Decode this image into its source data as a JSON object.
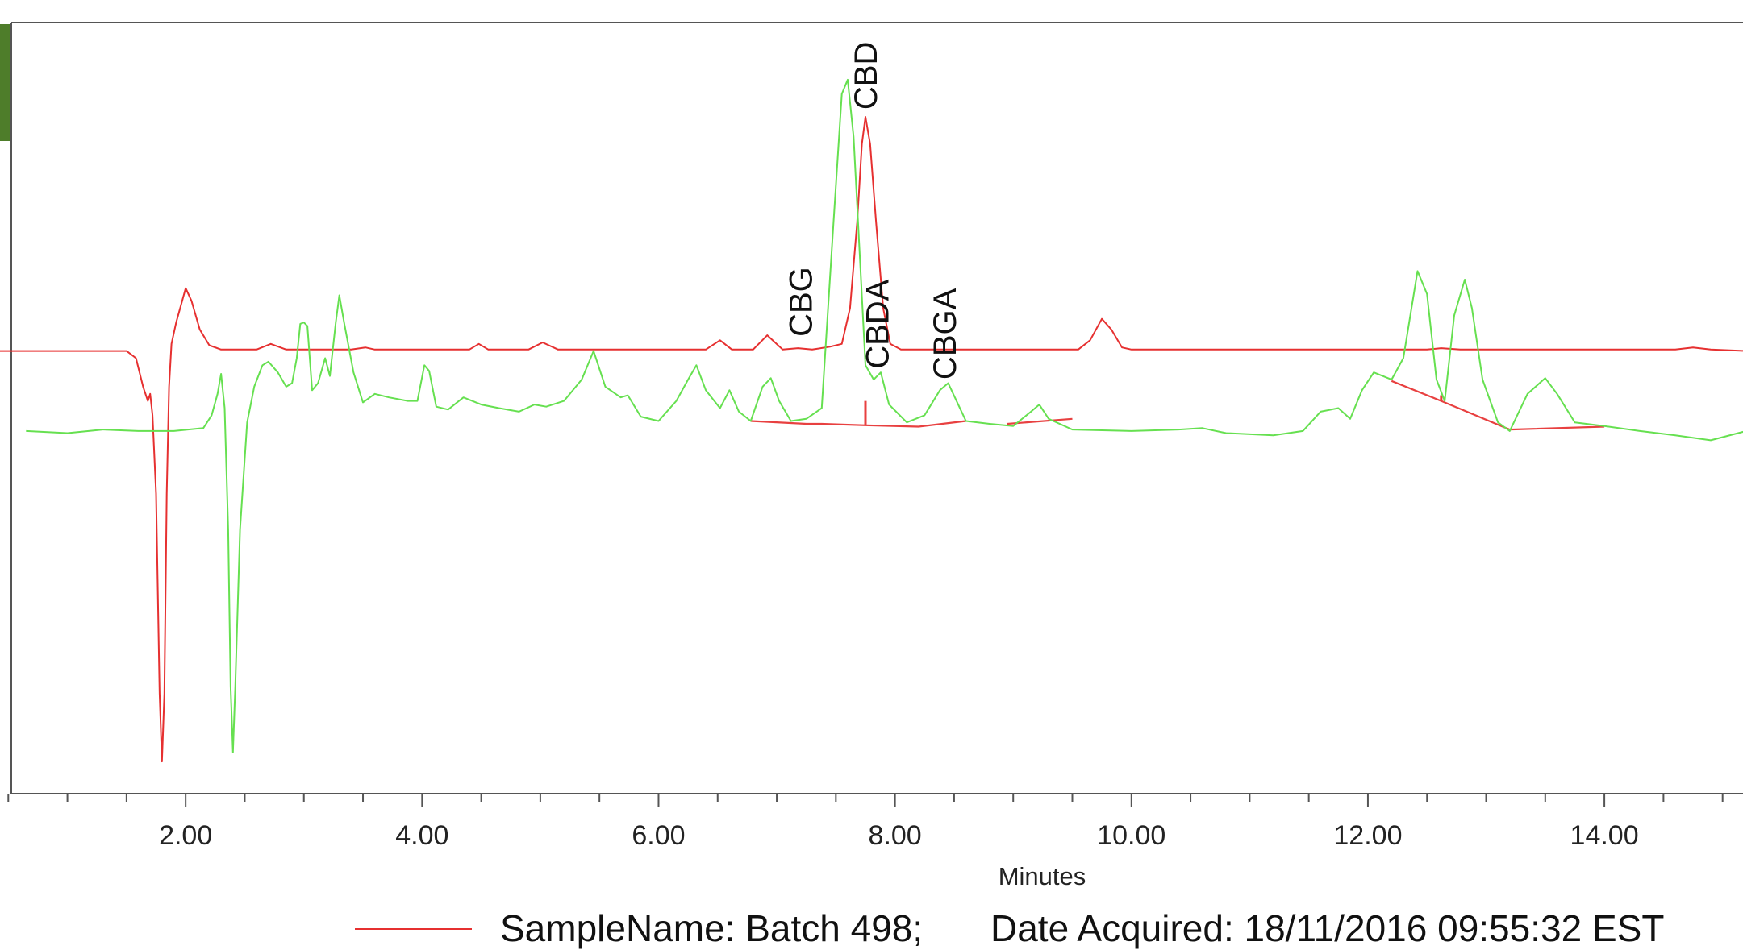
{
  "colors": {
    "red_trace": "#e63030",
    "green_trace": "#66e050",
    "baseline": "#e84040",
    "axis": "#555555",
    "side_accent": "#4e7d2a"
  },
  "chart_data": {
    "type": "line",
    "xlabel": "Minutes",
    "xlim": [
      0,
      15.2
    ],
    "ylim": [
      -620,
      460
    ],
    "grid": false,
    "x_ticks": [
      "2.00",
      "4.00",
      "6.00",
      "8.00",
      "10.00",
      "12.00",
      "14.00"
    ],
    "x_tick_values": [
      2,
      4,
      6,
      8,
      10,
      12,
      14
    ],
    "legend": {
      "entries": [
        {
          "sample": "SampleName: Batch 498;",
          "date": "Date Acquired: 18/11/2016 09:55:32 EST"
        }
      ]
    },
    "peak_labels": [
      {
        "text": "CBG",
        "x": 7.2,
        "y": 20
      },
      {
        "text": "CBD",
        "x": 7.75,
        "y": 338
      },
      {
        "text": "CBDA",
        "x": 7.85,
        "y": -25
      },
      {
        "text": "CBGA",
        "x": 8.42,
        "y": -40
      }
    ],
    "series": [
      {
        "color": "#e63030",
        "points": [
          [
            0,
            0
          ],
          [
            1.5,
            0
          ],
          [
            1.58,
            -10
          ],
          [
            1.64,
            -50
          ],
          [
            1.68,
            -70
          ],
          [
            1.7,
            -60
          ],
          [
            1.72,
            -90
          ],
          [
            1.75,
            -200
          ],
          [
            1.78,
            -480
          ],
          [
            1.8,
            -575
          ],
          [
            1.82,
            -480
          ],
          [
            1.84,
            -200
          ],
          [
            1.86,
            -50
          ],
          [
            1.88,
            10
          ],
          [
            1.92,
            40
          ],
          [
            1.97,
            70
          ],
          [
            2.0,
            88
          ],
          [
            2.05,
            70
          ],
          [
            2.12,
            30
          ],
          [
            2.2,
            8
          ],
          [
            2.3,
            2
          ],
          [
            2.6,
            2
          ],
          [
            2.72,
            10
          ],
          [
            2.85,
            2
          ],
          [
            3.4,
            2
          ],
          [
            3.52,
            5
          ],
          [
            3.6,
            2
          ],
          [
            4.4,
            2
          ],
          [
            4.48,
            10
          ],
          [
            4.56,
            2
          ],
          [
            4.9,
            2
          ],
          [
            5.02,
            12
          ],
          [
            5.15,
            2
          ],
          [
            6.4,
            2
          ],
          [
            6.52,
            15
          ],
          [
            6.62,
            2
          ],
          [
            6.8,
            2
          ],
          [
            6.92,
            22
          ],
          [
            7.05,
            2
          ],
          [
            7.18,
            4
          ],
          [
            7.3,
            2
          ],
          [
            7.45,
            6
          ],
          [
            7.55,
            10
          ],
          [
            7.62,
            60
          ],
          [
            7.68,
            180
          ],
          [
            7.72,
            290
          ],
          [
            7.75,
            328
          ],
          [
            7.79,
            290
          ],
          [
            7.84,
            180
          ],
          [
            7.9,
            60
          ],
          [
            7.96,
            10
          ],
          [
            8.05,
            2
          ],
          [
            9.55,
            2
          ],
          [
            9.65,
            15
          ],
          [
            9.75,
            45
          ],
          [
            9.83,
            30
          ],
          [
            9.92,
            5
          ],
          [
            10.0,
            2
          ],
          [
            12.5,
            2
          ],
          [
            12.62,
            4
          ],
          [
            12.78,
            2
          ],
          [
            14.6,
            2
          ],
          [
            14.75,
            5
          ],
          [
            14.9,
            2
          ],
          [
            15.2,
            0
          ]
        ]
      },
      {
        "color": "#66e050",
        "points": [
          [
            0.65,
            -112
          ],
          [
            1.0,
            -115
          ],
          [
            1.3,
            -110
          ],
          [
            1.6,
            -112
          ],
          [
            1.9,
            -112
          ],
          [
            2.15,
            -108
          ],
          [
            2.22,
            -90
          ],
          [
            2.27,
            -60
          ],
          [
            2.3,
            -32
          ],
          [
            2.33,
            -80
          ],
          [
            2.36,
            -250
          ],
          [
            2.38,
            -470
          ],
          [
            2.4,
            -562
          ],
          [
            2.42,
            -470
          ],
          [
            2.46,
            -250
          ],
          [
            2.52,
            -100
          ],
          [
            2.58,
            -50
          ],
          [
            2.65,
            -20
          ],
          [
            2.7,
            -15
          ],
          [
            2.78,
            -30
          ],
          [
            2.85,
            -50
          ],
          [
            2.9,
            -45
          ],
          [
            2.94,
            -10
          ],
          [
            2.97,
            38
          ],
          [
            3.0,
            40
          ],
          [
            3.03,
            35
          ],
          [
            3.07,
            -55
          ],
          [
            3.12,
            -45
          ],
          [
            3.18,
            -10
          ],
          [
            3.22,
            -35
          ],
          [
            3.27,
            40
          ],
          [
            3.3,
            78
          ],
          [
            3.34,
            40
          ],
          [
            3.42,
            -30
          ],
          [
            3.5,
            -72
          ],
          [
            3.6,
            -60
          ],
          [
            3.72,
            -65
          ],
          [
            3.88,
            -70
          ],
          [
            3.96,
            -70
          ],
          [
            4.02,
            -20
          ],
          [
            4.06,
            -28
          ],
          [
            4.12,
            -78
          ],
          [
            4.22,
            -82
          ],
          [
            4.35,
            -65
          ],
          [
            4.5,
            -75
          ],
          [
            4.65,
            -80
          ],
          [
            4.82,
            -85
          ],
          [
            4.95,
            -75
          ],
          [
            5.05,
            -78
          ],
          [
            5.2,
            -70
          ],
          [
            5.35,
            -40
          ],
          [
            5.45,
            0
          ],
          [
            5.55,
            -50
          ],
          [
            5.68,
            -65
          ],
          [
            5.74,
            -62
          ],
          [
            5.85,
            -92
          ],
          [
            6.0,
            -98
          ],
          [
            6.15,
            -70
          ],
          [
            6.25,
            -40
          ],
          [
            6.32,
            -20
          ],
          [
            6.4,
            -55
          ],
          [
            6.52,
            -80
          ],
          [
            6.6,
            -55
          ],
          [
            6.68,
            -85
          ],
          [
            6.78,
            -98
          ],
          [
            6.88,
            -50
          ],
          [
            6.95,
            -38
          ],
          [
            7.02,
            -70
          ],
          [
            7.12,
            -98
          ],
          [
            7.25,
            -95
          ],
          [
            7.38,
            -80
          ],
          [
            7.48,
            180
          ],
          [
            7.55,
            360
          ],
          [
            7.6,
            380
          ],
          [
            7.65,
            300
          ],
          [
            7.7,
            140
          ],
          [
            7.75,
            -20
          ],
          [
            7.82,
            -40
          ],
          [
            7.88,
            -30
          ],
          [
            7.95,
            -75
          ],
          [
            8.1,
            -100
          ],
          [
            8.25,
            -90
          ],
          [
            8.38,
            -55
          ],
          [
            8.45,
            -45
          ],
          [
            8.52,
            -70
          ],
          [
            8.6,
            -98
          ],
          [
            8.8,
            -102
          ],
          [
            9.0,
            -105
          ],
          [
            9.15,
            -85
          ],
          [
            9.22,
            -75
          ],
          [
            9.3,
            -95
          ],
          [
            9.5,
            -110
          ],
          [
            10.0,
            -112
          ],
          [
            10.4,
            -110
          ],
          [
            10.6,
            -108
          ],
          [
            10.8,
            -115
          ],
          [
            11.2,
            -118
          ],
          [
            11.45,
            -112
          ],
          [
            11.6,
            -85
          ],
          [
            11.75,
            -80
          ],
          [
            11.85,
            -95
          ],
          [
            11.95,
            -55
          ],
          [
            12.05,
            -30
          ],
          [
            12.2,
            -40
          ],
          [
            12.3,
            -10
          ],
          [
            12.42,
            112
          ],
          [
            12.5,
            80
          ],
          [
            12.58,
            -40
          ],
          [
            12.65,
            -70
          ],
          [
            12.73,
            50
          ],
          [
            12.82,
            100
          ],
          [
            12.88,
            60
          ],
          [
            12.97,
            -40
          ],
          [
            13.1,
            -100
          ],
          [
            13.2,
            -112
          ],
          [
            13.35,
            -60
          ],
          [
            13.5,
            -38
          ],
          [
            13.6,
            -60
          ],
          [
            13.75,
            -100
          ],
          [
            14.0,
            -105
          ],
          [
            14.3,
            -112
          ],
          [
            14.6,
            -118
          ],
          [
            14.9,
            -125
          ],
          [
            15.2,
            -112
          ]
        ]
      }
    ],
    "baselines": [
      {
        "segments": [
          [
            6.78,
            -98
          ],
          [
            7.25,
            -102
          ],
          [
            7.38,
            -102
          ],
          [
            7.75,
            -104
          ],
          [
            8.2,
            -106
          ],
          [
            8.6,
            -98
          ]
        ],
        "drop": [
          7.75,
          -104,
          -70
        ]
      },
      {
        "segments": [
          [
            8.95,
            -102
          ],
          [
            9.5,
            -95
          ]
        ]
      },
      {
        "segments": [
          [
            12.2,
            -42
          ],
          [
            12.62,
            -70
          ],
          [
            13.2,
            -110
          ],
          [
            14.0,
            -106
          ]
        ],
        "drop": [
          12.62,
          -70,
          -62
        ]
      }
    ]
  }
}
